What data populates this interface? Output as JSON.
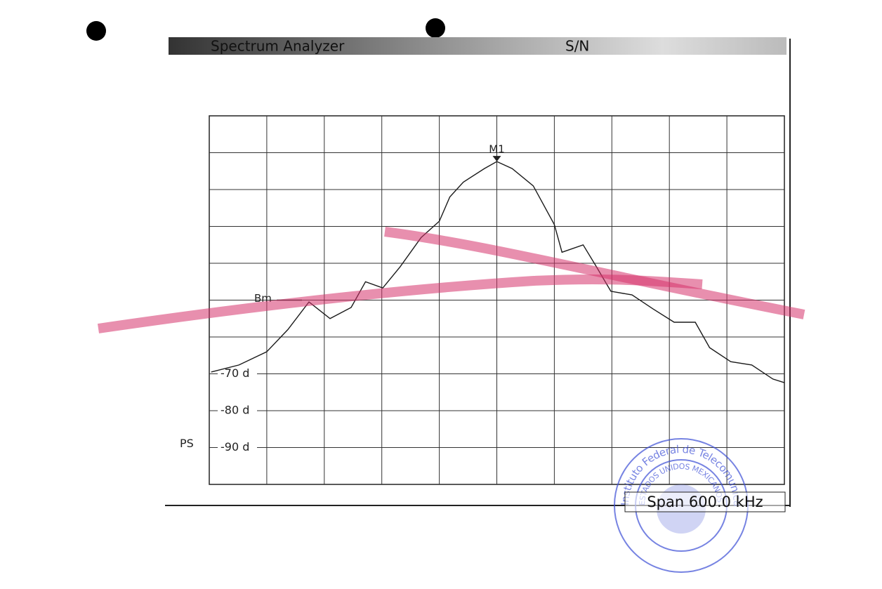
{
  "header": {
    "title": "Spectrum Analyzer",
    "mode": "S/N"
  },
  "chart_data": {
    "type": "line",
    "x": [
      -298,
      -269,
      -240,
      -218,
      -196,
      -174,
      -152,
      -137,
      -119,
      -101,
      -79,
      -60,
      -49,
      -35,
      -13,
      0,
      16,
      38,
      60,
      68,
      90,
      104,
      119,
      141,
      163,
      185,
      207,
      222,
      244,
      266,
      288,
      300
    ],
    "values": [
      -69.5,
      -67.6,
      -64,
      -58,
      -50.5,
      -55,
      -52,
      -45,
      -46.7,
      -41,
      -33,
      -28.6,
      -22,
      -18,
      -14.3,
      -12.4,
      -14.3,
      -19,
      -29.5,
      -37,
      -35,
      -41,
      -47.6,
      -48.6,
      -52.4,
      -56,
      -56,
      -62.9,
      -66.7,
      -67.6,
      -71.4,
      -72.4
    ],
    "color": "#1a1a1a",
    "xlim": [
      -300,
      300
    ],
    "xticks": [
      -240,
      -180,
      -120,
      -60,
      0,
      60,
      120,
      180,
      240
    ],
    "ylim": [
      -100,
      0
    ],
    "yticks": [
      -10,
      -20,
      -30,
      -40,
      -50,
      -60,
      -70,
      -80,
      -90
    ],
    "ytick_labels": [
      {
        "value": -70,
        "label": "-70 d"
      },
      {
        "value": -80,
        "label": "-80 d"
      },
      {
        "value": -90,
        "label": "-90 d"
      }
    ],
    "grid": true,
    "marker_label": "M1",
    "reference_label": "Bm",
    "reference_level": -50,
    "side_label": "PS",
    "span_label": "Span 600.0 kHz"
  },
  "stamp": {
    "outer": "Instituto Federal de Telecomunicaciones",
    "inner": "ESTADOS UNIDOS MEXICANOS"
  }
}
